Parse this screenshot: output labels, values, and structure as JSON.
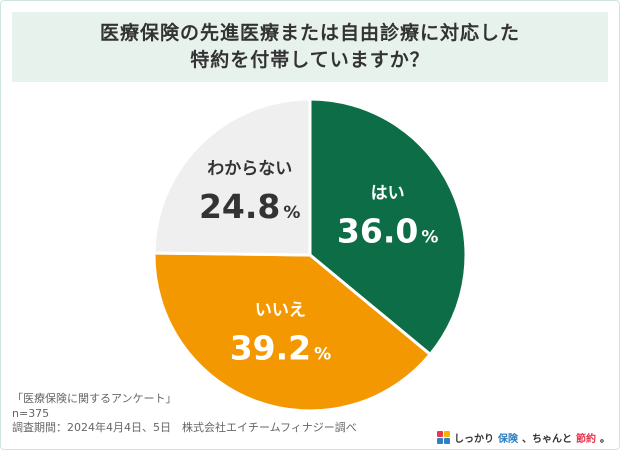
{
  "title": {
    "line1": "医療保険の先進医療または自由診療に対応した",
    "line2": "特約を付帯していますか？"
  },
  "chart_data": {
    "type": "pie",
    "slices": [
      {
        "label": "はい",
        "value": 36.0,
        "display": "36.0",
        "color": "#0c6d47",
        "text_color": "#ffffff"
      },
      {
        "label": "いいえ",
        "value": 39.2,
        "display": "39.2",
        "color": "#f39800",
        "text_color": "#ffffff"
      },
      {
        "label": "わからない",
        "value": 24.8,
        "display": "24.8",
        "color": "#efefef",
        "text_color": "#333333"
      }
    ],
    "unit": "%",
    "start": "12 o'clock, clockwise"
  },
  "footer": {
    "survey_name": "「医療保険に関するアンケート」",
    "sample": "n=375",
    "period": "調査期間：2024年4月4日、5日　株式会社エイチームフィナジー調べ"
  },
  "brand": {
    "part1": "しっかり",
    "part2": "保険",
    "part3": "、ちゃんと",
    "part4": "節約",
    "part5": "。"
  }
}
